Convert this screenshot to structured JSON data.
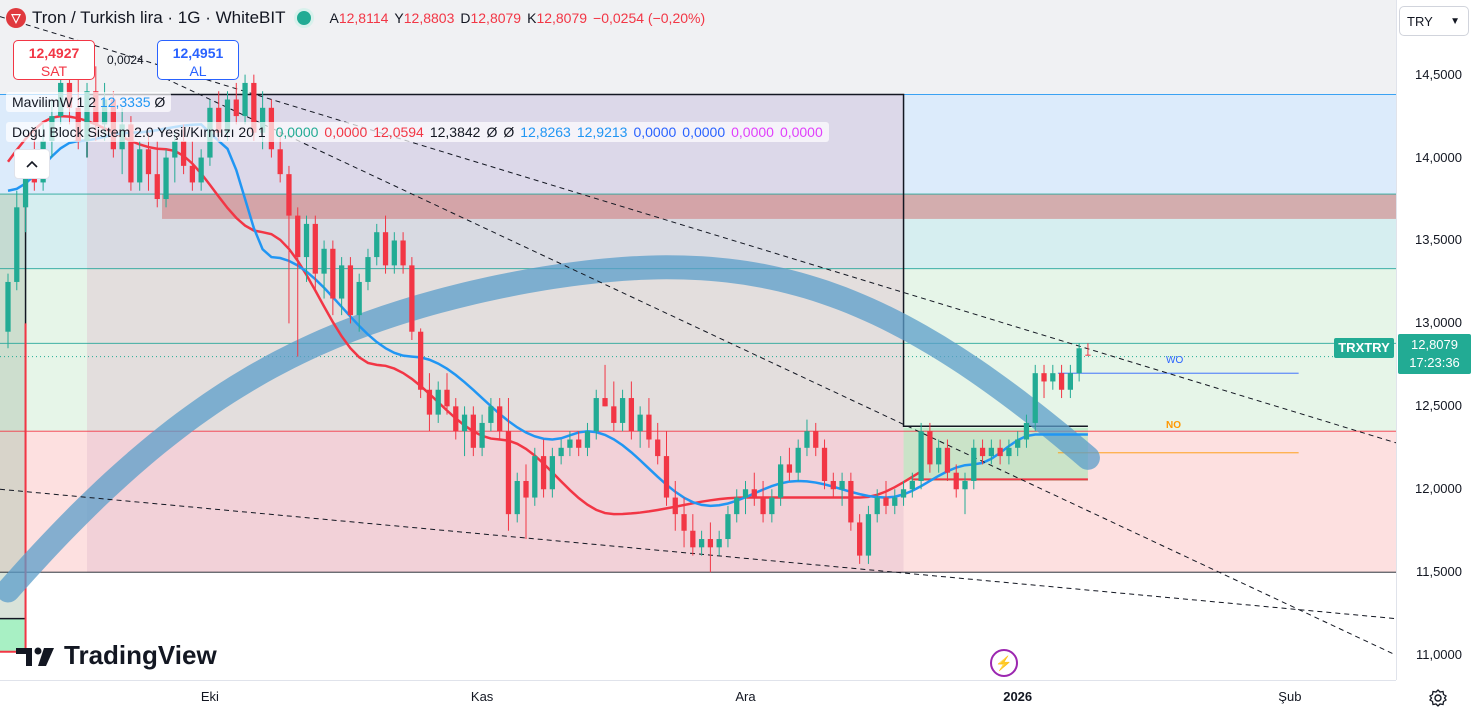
{
  "header": {
    "symbol_icon": "tron-logo-icon",
    "title": "Tron / Turkish lira · 1G · WhiteBIT",
    "ohlc": [
      {
        "label": "A",
        "value": "12,8114"
      },
      {
        "label": "Y",
        "value": "12,8803"
      },
      {
        "label": "D",
        "value": "12,8079"
      },
      {
        "label": "K",
        "value": "12,8079"
      }
    ],
    "change": "−0,0254 (−0,20%)"
  },
  "trade": {
    "sell_value": "12,4927",
    "sell_label": "SAT",
    "buy_value": "12,4951",
    "buy_label": "AL",
    "spread": "0,0024"
  },
  "indicators": {
    "mavilim": {
      "name": "MavilimW 1 2",
      "value": "12,3335",
      "extra": "Ø"
    },
    "dogu": {
      "name": "Doğu Block Sistem 2.0 Yeşil/Kırmızı 20 1",
      "values": [
        {
          "v": "0,0000",
          "color": "#22ab94"
        },
        {
          "v": "0,0000",
          "color": "#f23645"
        },
        {
          "v": "12,0594",
          "color": "#f23645"
        },
        {
          "v": "12,3842",
          "color": "#131722"
        },
        {
          "v": "Ø",
          "color": "#131722"
        },
        {
          "v": "Ø",
          "color": "#131722"
        },
        {
          "v": "12,8263",
          "color": "#2196f3"
        },
        {
          "v": "12,9213",
          "color": "#2196f3"
        },
        {
          "v": "0,0000",
          "color": "#2962ff"
        },
        {
          "v": "0,0000",
          "color": "#2962ff"
        },
        {
          "v": "0,0000",
          "color": "#e040fb"
        },
        {
          "v": "0,0000",
          "color": "#e040fb"
        }
      ]
    }
  },
  "currency": "TRY",
  "price_axis": {
    "ticks": [
      "14,5000",
      "14,0000",
      "13,5000",
      "13,0000",
      "12,5000",
      "12,0000",
      "11,5000",
      "11,0000"
    ],
    "current_price": "12,8079",
    "countdown": "17:23:36",
    "symbol_tag": "TRXTRY"
  },
  "time_axis": {
    "ticks": [
      {
        "label": "Eki",
        "bold": false
      },
      {
        "label": "Kas",
        "bold": false
      },
      {
        "label": "Ara",
        "bold": false
      },
      {
        "label": "2026",
        "bold": true
      },
      {
        "label": "Şub",
        "bold": false
      }
    ]
  },
  "annotations": {
    "wo": "WO",
    "no": "NO"
  },
  "branding": {
    "logo_text": "TradingView"
  },
  "colors": {
    "up": "#22ab94",
    "down": "#f23645",
    "ma_blue": "#2196f3",
    "ma_red": "#f23645",
    "band": "#5b9ec9"
  },
  "chart_data": {
    "type": "candlestick",
    "title": "Tron / Turkish lira · 1G · WhiteBIT",
    "ylim": [
      10.85,
      14.95
    ],
    "x_range": [
      "2025-09-08",
      "2026-02-14"
    ],
    "x_ticks": [
      "2025-10-01",
      "2025-11-01",
      "2025-12-01",
      "2026-01-01",
      "2026-02-01"
    ],
    "grid": false,
    "series": [
      {
        "date": "2025-09-08",
        "o": 12.95,
        "h": 13.3,
        "l": 12.85,
        "c": 13.25
      },
      {
        "date": "2025-09-09",
        "o": 13.25,
        "h": 13.8,
        "l": 13.2,
        "c": 13.7
      },
      {
        "date": "2025-09-10",
        "o": 13.7,
        "h": 14.0,
        "l": 13.55,
        "c": 13.95
      },
      {
        "date": "2025-09-11",
        "o": 13.95,
        "h": 14.15,
        "l": 13.8,
        "c": 13.85
      },
      {
        "date": "2025-09-12",
        "o": 13.85,
        "h": 14.2,
        "l": 13.8,
        "c": 14.1
      },
      {
        "date": "2025-09-13",
        "o": 14.1,
        "h": 14.35,
        "l": 14.0,
        "c": 14.25
      },
      {
        "date": "2025-09-14",
        "o": 14.25,
        "h": 14.55,
        "l": 14.2,
        "c": 14.45
      },
      {
        "date": "2025-09-15",
        "o": 14.45,
        "h": 14.6,
        "l": 14.2,
        "c": 14.3
      },
      {
        "date": "2025-09-16",
        "o": 14.3,
        "h": 14.6,
        "l": 14.05,
        "c": 14.1
      },
      {
        "date": "2025-09-17",
        "o": 14.1,
        "h": 14.45,
        "l": 14.0,
        "c": 14.4
      },
      {
        "date": "2025-09-18",
        "o": 14.4,
        "h": 14.55,
        "l": 14.1,
        "c": 14.2
      },
      {
        "date": "2025-09-19",
        "o": 14.2,
        "h": 14.45,
        "l": 14.1,
        "c": 14.35
      },
      {
        "date": "2025-09-20",
        "o": 14.35,
        "h": 14.4,
        "l": 14.0,
        "c": 14.05
      },
      {
        "date": "2025-09-21",
        "o": 14.05,
        "h": 14.3,
        "l": 13.9,
        "c": 14.2
      },
      {
        "date": "2025-09-22",
        "o": 14.2,
        "h": 14.25,
        "l": 13.8,
        "c": 13.85
      },
      {
        "date": "2025-09-23",
        "o": 13.85,
        "h": 14.1,
        "l": 13.8,
        "c": 14.05
      },
      {
        "date": "2025-09-24",
        "o": 14.05,
        "h": 14.15,
        "l": 13.8,
        "c": 13.9
      },
      {
        "date": "2025-09-25",
        "o": 13.9,
        "h": 14.1,
        "l": 13.7,
        "c": 13.75
      },
      {
        "date": "2025-09-26",
        "o": 13.75,
        "h": 14.05,
        "l": 13.7,
        "c": 14.0
      },
      {
        "date": "2025-09-27",
        "o": 14.0,
        "h": 14.15,
        "l": 13.85,
        "c": 14.1
      },
      {
        "date": "2025-09-28",
        "o": 14.1,
        "h": 14.2,
        "l": 13.9,
        "c": 13.95
      },
      {
        "date": "2025-09-29",
        "o": 13.95,
        "h": 14.1,
        "l": 13.8,
        "c": 13.85
      },
      {
        "date": "2025-09-30",
        "o": 13.85,
        "h": 14.05,
        "l": 13.8,
        "c": 14.0
      },
      {
        "date": "2025-10-01",
        "o": 14.0,
        "h": 14.35,
        "l": 13.95,
        "c": 14.3
      },
      {
        "date": "2025-10-02",
        "o": 14.3,
        "h": 14.4,
        "l": 14.1,
        "c": 14.15
      },
      {
        "date": "2025-10-03",
        "o": 14.15,
        "h": 14.4,
        "l": 14.1,
        "c": 14.35
      },
      {
        "date": "2025-10-04",
        "o": 14.35,
        "h": 14.45,
        "l": 14.2,
        "c": 14.25
      },
      {
        "date": "2025-10-05",
        "o": 14.25,
        "h": 14.5,
        "l": 14.2,
        "c": 14.45
      },
      {
        "date": "2025-10-06",
        "o": 14.45,
        "h": 14.5,
        "l": 14.1,
        "c": 14.15
      },
      {
        "date": "2025-10-07",
        "o": 14.15,
        "h": 14.4,
        "l": 14.05,
        "c": 14.3
      },
      {
        "date": "2025-10-08",
        "o": 14.3,
        "h": 14.35,
        "l": 14.0,
        "c": 14.05
      },
      {
        "date": "2025-10-09",
        "o": 14.05,
        "h": 14.15,
        "l": 13.85,
        "c": 13.9
      },
      {
        "date": "2025-10-10",
        "o": 13.9,
        "h": 13.95,
        "l": 13.0,
        "c": 13.65
      },
      {
        "date": "2025-10-11",
        "o": 13.65,
        "h": 13.7,
        "l": 12.8,
        "c": 13.4
      },
      {
        "date": "2025-10-12",
        "o": 13.4,
        "h": 13.65,
        "l": 13.25,
        "c": 13.6
      },
      {
        "date": "2025-10-13",
        "o": 13.6,
        "h": 13.65,
        "l": 13.2,
        "c": 13.3
      },
      {
        "date": "2025-10-14",
        "o": 13.3,
        "h": 13.5,
        "l": 13.15,
        "c": 13.45
      },
      {
        "date": "2025-10-15",
        "o": 13.45,
        "h": 13.5,
        "l": 13.05,
        "c": 13.15
      },
      {
        "date": "2025-10-16",
        "o": 13.15,
        "h": 13.4,
        "l": 13.05,
        "c": 13.35
      },
      {
        "date": "2025-10-17",
        "o": 13.35,
        "h": 13.4,
        "l": 13.0,
        "c": 13.05
      },
      {
        "date": "2025-10-18",
        "o": 13.05,
        "h": 13.3,
        "l": 12.95,
        "c": 13.25
      },
      {
        "date": "2025-10-19",
        "o": 13.25,
        "h": 13.45,
        "l": 13.2,
        "c": 13.4
      },
      {
        "date": "2025-10-20",
        "o": 13.4,
        "h": 13.6,
        "l": 13.35,
        "c": 13.55
      },
      {
        "date": "2025-10-21",
        "o": 13.55,
        "h": 13.65,
        "l": 13.3,
        "c": 13.35
      },
      {
        "date": "2025-10-22",
        "o": 13.35,
        "h": 13.55,
        "l": 13.3,
        "c": 13.5
      },
      {
        "date": "2025-10-23",
        "o": 13.5,
        "h": 13.55,
        "l": 13.3,
        "c": 13.35
      },
      {
        "date": "2025-10-24",
        "o": 13.35,
        "h": 13.4,
        "l": 12.9,
        "c": 12.95
      },
      {
        "date": "2025-10-25",
        "o": 12.95,
        "h": 12.97,
        "l": 12.55,
        "c": 12.6
      },
      {
        "date": "2025-10-26",
        "o": 12.6,
        "h": 12.7,
        "l": 12.35,
        "c": 12.45
      },
      {
        "date": "2025-10-27",
        "o": 12.45,
        "h": 12.65,
        "l": 12.4,
        "c": 12.6
      },
      {
        "date": "2025-10-28",
        "o": 12.6,
        "h": 12.7,
        "l": 12.45,
        "c": 12.5
      },
      {
        "date": "2025-10-29",
        "o": 12.5,
        "h": 12.55,
        "l": 12.3,
        "c": 12.35
      },
      {
        "date": "2025-10-30",
        "o": 12.35,
        "h": 12.5,
        "l": 12.2,
        "c": 12.45
      },
      {
        "date": "2025-10-31",
        "o": 12.45,
        "h": 12.5,
        "l": 12.2,
        "c": 12.25
      },
      {
        "date": "2025-11-01",
        "o": 12.25,
        "h": 12.45,
        "l": 12.2,
        "c": 12.4
      },
      {
        "date": "2025-11-02",
        "o": 12.4,
        "h": 12.55,
        "l": 12.35,
        "c": 12.5
      },
      {
        "date": "2025-11-03",
        "o": 12.5,
        "h": 12.55,
        "l": 12.3,
        "c": 12.35
      },
      {
        "date": "2025-11-04",
        "o": 12.35,
        "h": 12.55,
        "l": 11.75,
        "c": 11.85
      },
      {
        "date": "2025-11-05",
        "o": 11.85,
        "h": 12.1,
        "l": 11.8,
        "c": 12.05
      },
      {
        "date": "2025-11-06",
        "o": 12.05,
        "h": 12.15,
        "l": 11.7,
        "c": 11.95
      },
      {
        "date": "2025-11-07",
        "o": 11.95,
        "h": 12.25,
        "l": 11.9,
        "c": 12.2
      },
      {
        "date": "2025-11-08",
        "o": 12.2,
        "h": 12.3,
        "l": 11.95,
        "c": 12.0
      },
      {
        "date": "2025-11-09",
        "o": 12.0,
        "h": 12.25,
        "l": 11.95,
        "c": 12.2
      },
      {
        "date": "2025-11-10",
        "o": 12.2,
        "h": 12.3,
        "l": 12.15,
        "c": 12.25
      },
      {
        "date": "2025-11-11",
        "o": 12.25,
        "h": 12.35,
        "l": 12.2,
        "c": 12.3
      },
      {
        "date": "2025-11-12",
        "o": 12.3,
        "h": 12.35,
        "l": 12.2,
        "c": 12.25
      },
      {
        "date": "2025-11-13",
        "o": 12.25,
        "h": 12.4,
        "l": 12.2,
        "c": 12.35
      },
      {
        "date": "2025-11-14",
        "o": 12.35,
        "h": 12.6,
        "l": 12.3,
        "c": 12.55
      },
      {
        "date": "2025-11-15",
        "o": 12.55,
        "h": 12.75,
        "l": 12.5,
        "c": 12.5
      },
      {
        "date": "2025-11-16",
        "o": 12.5,
        "h": 12.65,
        "l": 12.35,
        "c": 12.4
      },
      {
        "date": "2025-11-17",
        "o": 12.4,
        "h": 12.6,
        "l": 12.35,
        "c": 12.55
      },
      {
        "date": "2025-11-18",
        "o": 12.55,
        "h": 12.65,
        "l": 12.3,
        "c": 12.35
      },
      {
        "date": "2025-11-19",
        "o": 12.35,
        "h": 12.5,
        "l": 12.25,
        "c": 12.45
      },
      {
        "date": "2025-11-20",
        "o": 12.45,
        "h": 12.55,
        "l": 12.25,
        "c": 12.3
      },
      {
        "date": "2025-11-21",
        "o": 12.3,
        "h": 12.4,
        "l": 12.15,
        "c": 12.2
      },
      {
        "date": "2025-11-22",
        "o": 12.2,
        "h": 12.35,
        "l": 11.9,
        "c": 11.95
      },
      {
        "date": "2025-11-23",
        "o": 11.95,
        "h": 12.05,
        "l": 11.75,
        "c": 11.85
      },
      {
        "date": "2025-11-24",
        "o": 11.85,
        "h": 11.95,
        "l": 11.65,
        "c": 11.75
      },
      {
        "date": "2025-11-25",
        "o": 11.75,
        "h": 11.85,
        "l": 11.6,
        "c": 11.65
      },
      {
        "date": "2025-11-26",
        "o": 11.65,
        "h": 11.75,
        "l": 11.6,
        "c": 11.7
      },
      {
        "date": "2025-11-27",
        "o": 11.7,
        "h": 11.8,
        "l": 11.5,
        "c": 11.65
      },
      {
        "date": "2025-11-28",
        "o": 11.65,
        "h": 11.75,
        "l": 11.6,
        "c": 11.7
      },
      {
        "date": "2025-11-29",
        "o": 11.7,
        "h": 11.9,
        "l": 11.65,
        "c": 11.85
      },
      {
        "date": "2025-11-30",
        "o": 11.85,
        "h": 12.0,
        "l": 11.8,
        "c": 11.95
      },
      {
        "date": "2025-12-01",
        "o": 11.95,
        "h": 12.05,
        "l": 11.85,
        "c": 12.0
      },
      {
        "date": "2025-12-02",
        "o": 12.0,
        "h": 12.1,
        "l": 11.9,
        "c": 11.95
      },
      {
        "date": "2025-12-03",
        "o": 11.95,
        "h": 12.05,
        "l": 11.8,
        "c": 11.85
      },
      {
        "date": "2025-12-04",
        "o": 11.85,
        "h": 12.0,
        "l": 11.8,
        "c": 11.95
      },
      {
        "date": "2025-12-05",
        "o": 11.95,
        "h": 12.2,
        "l": 11.9,
        "c": 12.15
      },
      {
        "date": "2025-12-06",
        "o": 12.15,
        "h": 12.25,
        "l": 12.05,
        "c": 12.1
      },
      {
        "date": "2025-12-07",
        "o": 12.1,
        "h": 12.3,
        "l": 12.05,
        "c": 12.25
      },
      {
        "date": "2025-12-08",
        "o": 12.25,
        "h": 12.42,
        "l": 12.2,
        "c": 12.35
      },
      {
        "date": "2025-12-09",
        "o": 12.35,
        "h": 12.4,
        "l": 12.2,
        "c": 12.25
      },
      {
        "date": "2025-12-10",
        "o": 12.25,
        "h": 12.3,
        "l": 12.0,
        "c": 12.05
      },
      {
        "date": "2025-12-11",
        "o": 12.05,
        "h": 12.1,
        "l": 11.95,
        "c": 12.0
      },
      {
        "date": "2025-12-12",
        "o": 12.0,
        "h": 12.1,
        "l": 11.9,
        "c": 12.05
      },
      {
        "date": "2025-12-13",
        "o": 12.05,
        "h": 12.1,
        "l": 11.75,
        "c": 11.8
      },
      {
        "date": "2025-12-14",
        "o": 11.8,
        "h": 11.85,
        "l": 11.55,
        "c": 11.6
      },
      {
        "date": "2025-12-15",
        "o": 11.6,
        "h": 11.9,
        "l": 11.55,
        "c": 11.85
      },
      {
        "date": "2025-12-16",
        "o": 11.85,
        "h": 12.0,
        "l": 11.8,
        "c": 11.95
      },
      {
        "date": "2025-12-17",
        "o": 11.95,
        "h": 12.05,
        "l": 11.85,
        "c": 11.9
      },
      {
        "date": "2025-12-18",
        "o": 11.9,
        "h": 12.0,
        "l": 11.85,
        "c": 11.95
      },
      {
        "date": "2025-12-19",
        "o": 11.95,
        "h": 12.05,
        "l": 11.9,
        "c": 12.0
      },
      {
        "date": "2025-12-20",
        "o": 12.0,
        "h": 12.1,
        "l": 11.95,
        "c": 12.05
      },
      {
        "date": "2025-12-21",
        "o": 12.05,
        "h": 12.4,
        "l": 12.0,
        "c": 12.35
      },
      {
        "date": "2025-12-22",
        "o": 12.35,
        "h": 12.4,
        "l": 12.1,
        "c": 12.15
      },
      {
        "date": "2025-12-23",
        "o": 12.15,
        "h": 12.3,
        "l": 12.1,
        "c": 12.25
      },
      {
        "date": "2025-12-24",
        "o": 12.25,
        "h": 12.3,
        "l": 12.05,
        "c": 12.1
      },
      {
        "date": "2025-12-25",
        "o": 12.1,
        "h": 12.15,
        "l": 11.95,
        "c": 12.0
      },
      {
        "date": "2025-12-26",
        "o": 12.0,
        "h": 12.1,
        "l": 11.85,
        "c": 12.05
      },
      {
        "date": "2025-12-27",
        "o": 12.05,
        "h": 12.3,
        "l": 12.0,
        "c": 12.25
      },
      {
        "date": "2025-12-28",
        "o": 12.25,
        "h": 12.3,
        "l": 12.15,
        "c": 12.2
      },
      {
        "date": "2025-12-29",
        "o": 12.2,
        "h": 12.3,
        "l": 12.15,
        "c": 12.25
      },
      {
        "date": "2025-12-30",
        "o": 12.25,
        "h": 12.3,
        "l": 12.15,
        "c": 12.2
      },
      {
        "date": "2025-12-31",
        "o": 12.2,
        "h": 12.3,
        "l": 12.15,
        "c": 12.25
      },
      {
        "date": "2026-01-01",
        "o": 12.25,
        "h": 12.35,
        "l": 12.2,
        "c": 12.3
      },
      {
        "date": "2026-01-02",
        "o": 12.3,
        "h": 12.45,
        "l": 12.25,
        "c": 12.4
      },
      {
        "date": "2026-01-03",
        "o": 12.4,
        "h": 12.75,
        "l": 12.35,
        "c": 12.7
      },
      {
        "date": "2026-01-04",
        "o": 12.7,
        "h": 12.75,
        "l": 12.55,
        "c": 12.65
      },
      {
        "date": "2026-01-05",
        "o": 12.65,
        "h": 12.75,
        "l": 12.6,
        "c": 12.7
      },
      {
        "date": "2026-01-06",
        "o": 12.7,
        "h": 12.75,
        "l": 12.55,
        "c": 12.6
      },
      {
        "date": "2026-01-07",
        "o": 12.6,
        "h": 12.75,
        "l": 12.55,
        "c": 12.7
      },
      {
        "date": "2026-01-08",
        "o": 12.7,
        "h": 12.88,
        "l": 12.65,
        "c": 12.85
      },
      {
        "date": "2026-01-09",
        "o": 12.8114,
        "h": 12.8803,
        "l": 12.8079,
        "c": 12.8079
      }
    ]
  }
}
